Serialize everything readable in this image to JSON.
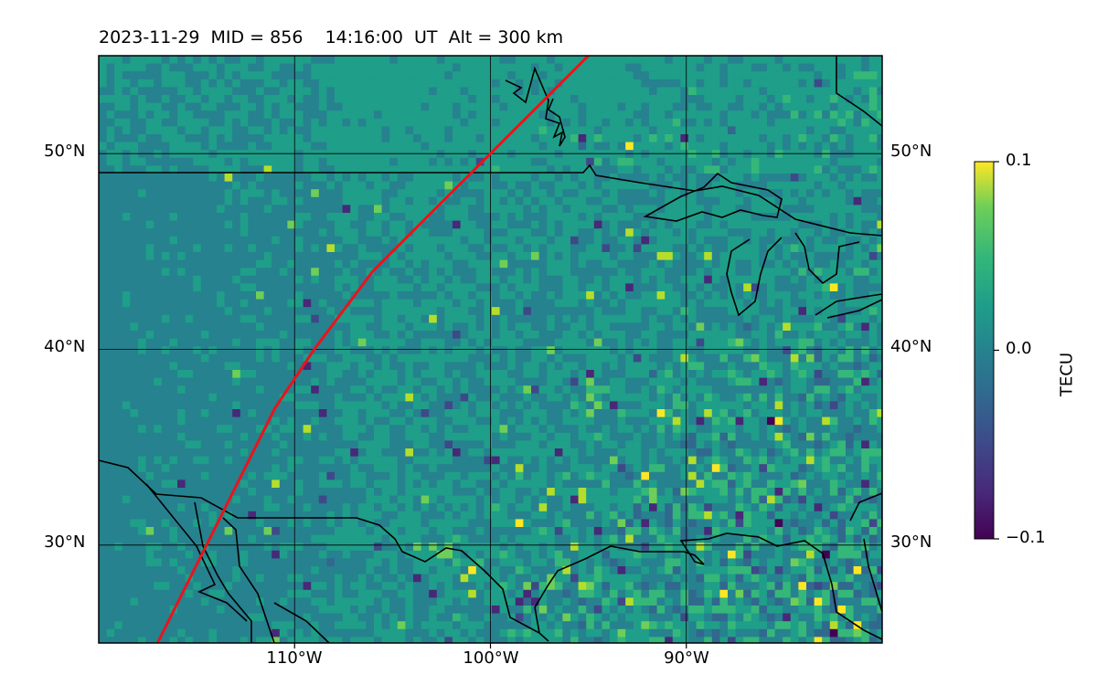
{
  "title": {
    "date": "2023-11-29",
    "mid": "MID = 856",
    "time": "14:16:00  UT",
    "alt": "Alt = 300 km"
  },
  "map": {
    "projection": "equirectangular",
    "lon_range": [
      -120,
      -80
    ],
    "lat_range": [
      25,
      55
    ],
    "lat_ticks": [
      {
        "value": 50,
        "label": "50°N"
      },
      {
        "value": 40,
        "label": "40°N"
      },
      {
        "value": 30,
        "label": "30°N"
      }
    ],
    "lon_ticks": [
      {
        "value": -110,
        "label": "110°W"
      },
      {
        "value": -100,
        "label": "100°W"
      },
      {
        "value": -90,
        "label": "90°W"
      }
    ],
    "gridlines": true,
    "overlays": [
      "coastlines",
      "national borders",
      "great lakes"
    ],
    "track_color": "#e8141c",
    "track": [
      [
        -117,
        25
      ],
      [
        -115,
        29
      ],
      [
        -113,
        33
      ],
      [
        -111,
        37
      ],
      [
        -109,
        40
      ],
      [
        -106,
        44
      ],
      [
        -104,
        46
      ],
      [
        -102,
        48
      ],
      [
        -100,
        50
      ],
      [
        -98,
        52
      ],
      [
        -95,
        55
      ]
    ]
  },
  "colorbar": {
    "label": "TECU",
    "min": -0.1,
    "max": 0.1,
    "ticks": [
      {
        "value": 0.1,
        "label": "0.1"
      },
      {
        "value": 0.0,
        "label": "0.0"
      },
      {
        "value": -0.1,
        "label": "−0.1"
      }
    ],
    "colormap": "viridis"
  }
}
